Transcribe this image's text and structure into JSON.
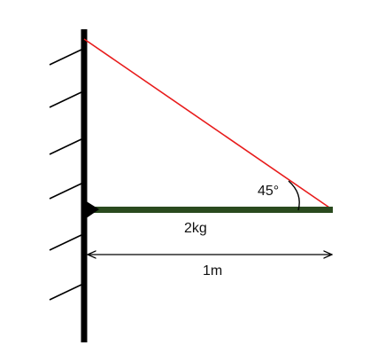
{
  "diagram": {
    "angle_label": "45°",
    "mass_label": "2kg",
    "length_label": "1m"
  },
  "colors": {
    "wall": "#000000",
    "hatch": "#000000",
    "cable": "#e81c1c",
    "beam": "#2a4a1e",
    "dimension": "#000000",
    "text": "#111111"
  }
}
